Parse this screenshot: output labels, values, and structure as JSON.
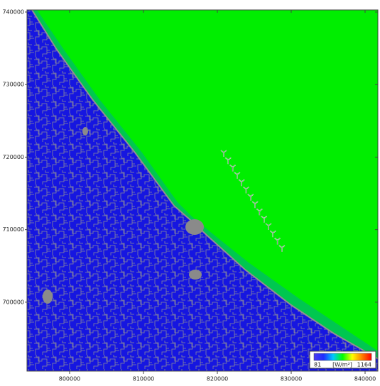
{
  "map": {
    "xlim": [
      794230,
      841730
    ],
    "ylim": [
      690500,
      740290
    ],
    "xticks": [
      800000,
      810000,
      820000,
      830000,
      840000
    ],
    "yticks": [
      700000,
      710000,
      720000,
      730000,
      740000
    ],
    "legend": {
      "min": 81,
      "unit": "[W/m²]",
      "max": 1164,
      "colors": [
        "#4b3cf0",
        "#1f2cff",
        "#00c8ff",
        "#00ff00",
        "#ffff00",
        "#ff8000",
        "#ff0000"
      ]
    }
  }
}
